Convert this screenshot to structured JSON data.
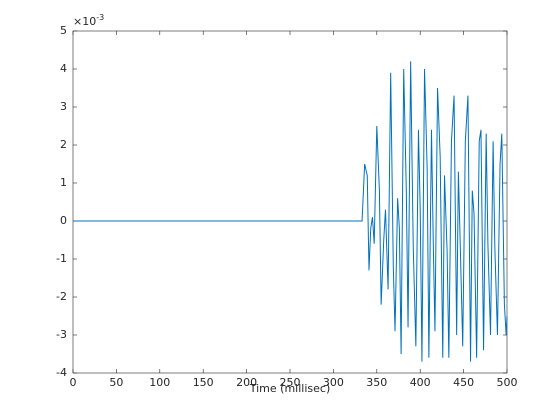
{
  "chart_data": {
    "type": "line",
    "x_label": "Time (millisec)",
    "y_exponent": {
      "base": "×10",
      "power": "-3"
    },
    "xlim": [
      0,
      500
    ],
    "xticks": [
      0,
      50,
      100,
      150,
      200,
      250,
      300,
      350,
      400,
      450,
      500
    ],
    "ylim": [
      -4,
      5
    ],
    "yticks": [
      -4,
      -3,
      -2,
      -1,
      0,
      1,
      2,
      3,
      4,
      5
    ],
    "grid": false,
    "series": [
      {
        "color": "#0072bd",
        "x": [
          0,
          333,
          336,
          339,
          341,
          343,
          345,
          347,
          350,
          353,
          355,
          358,
          360,
          363,
          366,
          369,
          371,
          374,
          376,
          378,
          381,
          384,
          386,
          389,
          392,
          395,
          398,
          400,
          402,
          405,
          408,
          410,
          413,
          415,
          417,
          420,
          423,
          426,
          428,
          431,
          433,
          436,
          439,
          442,
          444,
          446,
          449,
          452,
          455,
          458,
          460,
          462,
          465,
          468,
          470,
          473,
          476,
          478,
          481,
          484,
          486,
          489,
          492,
          494,
          497,
          499,
          500
        ],
        "values": [
          0,
          0,
          1.5,
          1.2,
          -1.3,
          -0.2,
          0.1,
          -0.6,
          2.5,
          0.8,
          -2.2,
          -0.5,
          0.3,
          -1.8,
          3.9,
          -1.2,
          -2.9,
          0.6,
          -0.2,
          -3.5,
          4.0,
          0.8,
          -2.8,
          4.2,
          -0.7,
          -3.3,
          2.4,
          0.3,
          -3.7,
          4.0,
          1.4,
          -3.6,
          2.4,
          -0.5,
          -2.9,
          3.5,
          1.7,
          -3.6,
          1.2,
          -0.8,
          -3.6,
          2.1,
          3.3,
          -3.0,
          1.3,
          -0.5,
          -3.3,
          2.1,
          3.3,
          -3.7,
          0.8,
          0.2,
          -3.6,
          2.1,
          2.4,
          -3.4,
          2.3,
          -0.6,
          -3.0,
          2.1,
          -0.7,
          -3.0,
          1.5,
          2.3,
          -2.2,
          -3.0,
          -2.5
        ]
      }
    ]
  }
}
